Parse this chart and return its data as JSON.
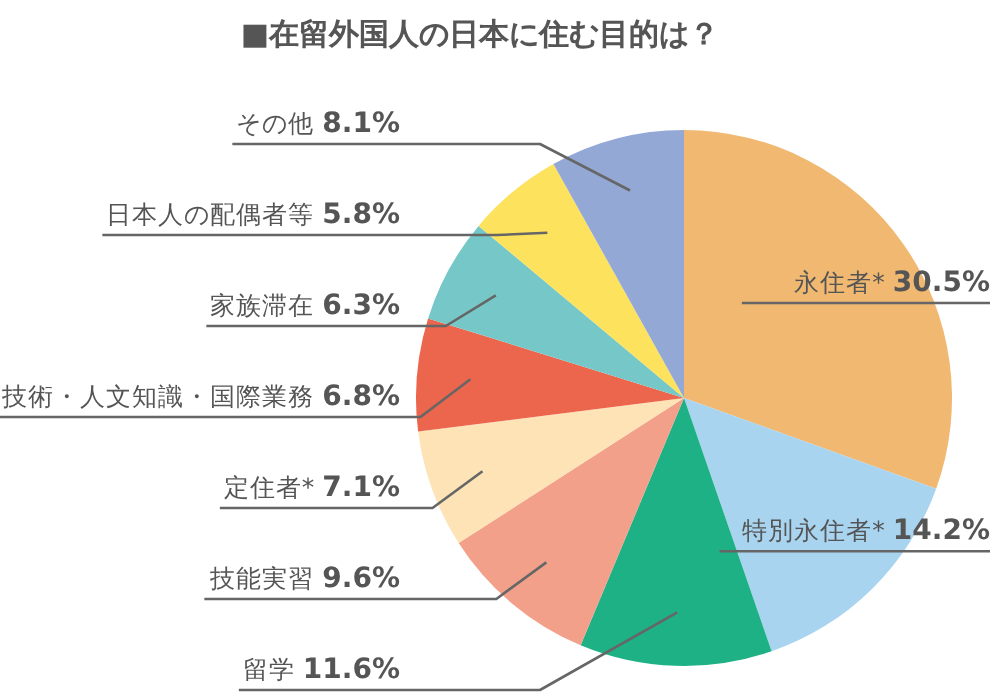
{
  "chart_data": {
    "type": "pie",
    "title": "■在留外国人の日本に住む目的は？",
    "categories": [
      "永住者*",
      "特別永住者*",
      "留学",
      "技能実習",
      "定住者*",
      "技術・人文知識・国際業務",
      "家族滞在",
      "日本人の配偶者等",
      "その他"
    ],
    "values": [
      30.5,
      14.2,
      11.6,
      9.6,
      7.1,
      6.8,
      6.3,
      5.8,
      8.1
    ],
    "value_labels": [
      "30.5%",
      "14.2%",
      "11.6%",
      "9.6%",
      "7.1%",
      "6.8%",
      "6.3%",
      "5.8%",
      "8.1%"
    ],
    "colors": [
      "#f0b870",
      "#a8d4f0",
      "#1db185",
      "#f2a08a",
      "#fde3b5",
      "#ec654d",
      "#76c8c8",
      "#fde25e",
      "#94a8d6"
    ]
  }
}
